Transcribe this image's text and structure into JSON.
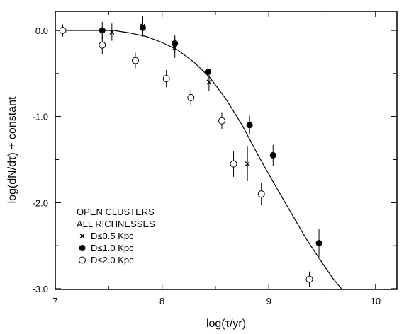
{
  "chart_data": {
    "type": "scatter",
    "xlabel": "log(τ/yr)",
    "ylabel": "log(dN/dτ) + constant",
    "xlim": [
      7,
      10.2
    ],
    "ylim": [
      -3.0,
      0.25
    ],
    "x_ticks": [
      7,
      8,
      9,
      10
    ],
    "x_tick_labels": [
      "7",
      "8",
      "9",
      "10"
    ],
    "y_ticks": [
      0.0,
      -1.0,
      -2.0,
      -3.0
    ],
    "y_tick_labels": [
      "0.0",
      "-1.0",
      "-2.0",
      "-3.0"
    ],
    "grid": false,
    "legend": {
      "placement": "bottom-left",
      "title_lines": [
        "OPEN CLUSTERS",
        "ALL RICHNESSES"
      ],
      "entries": [
        {
          "marker": "cross",
          "label": "D≤0.5 Kpc"
        },
        {
          "marker": "filled-circle",
          "label": "D≤1.0 Kpc"
        },
        {
          "marker": "open-circle",
          "label": "D≤2.0 Kpc"
        }
      ]
    },
    "series": [
      {
        "marker": "cross",
        "points": [
          {
            "x": 7.53,
            "y": -0.02,
            "err": 0.1
          },
          {
            "x": 7.82,
            "y": 0.05,
            "err": 0.12
          },
          {
            "x": 8.12,
            "y": -0.2,
            "err": 0.12
          },
          {
            "x": 8.44,
            "y": -0.6,
            "err": 0.1
          },
          {
            "x": 8.8,
            "y": -1.55,
            "err": 0.2
          }
        ]
      },
      {
        "marker": "filled-circle",
        "points": [
          {
            "x": 7.44,
            "y": 0.0,
            "err": 0.1
          },
          {
            "x": 7.82,
            "y": 0.03,
            "err": 0.1
          },
          {
            "x": 8.12,
            "y": -0.15,
            "err": 0.1
          },
          {
            "x": 8.43,
            "y": -0.48,
            "err": 0.1
          },
          {
            "x": 8.82,
            "y": -1.1,
            "err": 0.11
          },
          {
            "x": 9.04,
            "y": -1.45,
            "err": 0.12
          },
          {
            "x": 9.47,
            "y": -2.47,
            "err": 0.16
          }
        ]
      },
      {
        "marker": "open-circle",
        "points": [
          {
            "x": 7.07,
            "y": 0.0,
            "err": 0.07
          },
          {
            "x": 7.44,
            "y": -0.17,
            "err": 0.11
          },
          {
            "x": 7.75,
            "y": -0.35,
            "err": 0.09
          },
          {
            "x": 8.04,
            "y": -0.56,
            "err": 0.1
          },
          {
            "x": 8.27,
            "y": -0.78,
            "err": 0.1
          },
          {
            "x": 8.56,
            "y": -1.05,
            "err": 0.1
          },
          {
            "x": 8.67,
            "y": -1.55,
            "err": 0.15
          },
          {
            "x": 8.93,
            "y": -1.9,
            "err": 0.13
          },
          {
            "x": 9.38,
            "y": -2.89,
            "err": 0.09
          }
        ]
      }
    ],
    "model_curve": {
      "points": [
        [
          7.0,
          0.0
        ],
        [
          7.4,
          0.0
        ],
        [
          7.55,
          0.0
        ],
        [
          7.7,
          -0.03
        ],
        [
          7.85,
          -0.07
        ],
        [
          8.0,
          -0.14
        ],
        [
          8.15,
          -0.23
        ],
        [
          8.3,
          -0.37
        ],
        [
          8.45,
          -0.55
        ],
        [
          8.6,
          -0.8
        ],
        [
          8.75,
          -1.1
        ],
        [
          8.9,
          -1.45
        ],
        [
          9.05,
          -1.78
        ],
        [
          9.2,
          -2.1
        ],
        [
          9.35,
          -2.42
        ],
        [
          9.5,
          -2.7
        ],
        [
          9.6,
          -2.88
        ],
        [
          9.68,
          -3.0
        ]
      ]
    }
  }
}
